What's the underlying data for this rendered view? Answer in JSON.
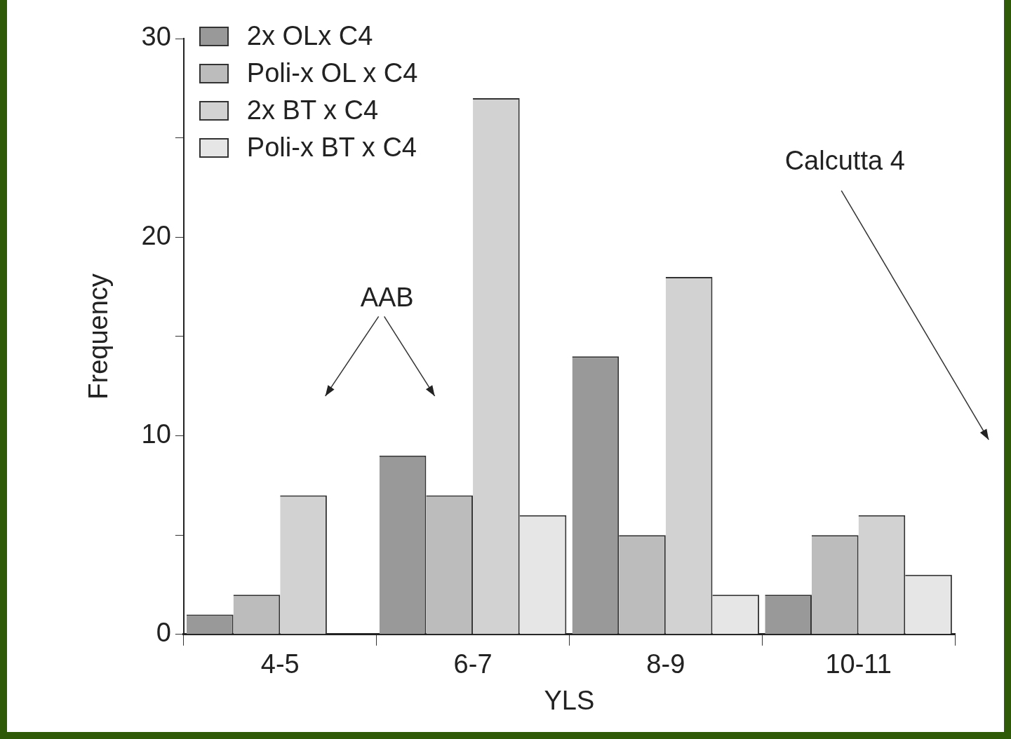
{
  "chart_data": {
    "type": "bar",
    "xlabel": "YLS",
    "ylabel": "Frequency",
    "categories": [
      "4-5",
      "6-7",
      "8-9",
      "10-11"
    ],
    "series": [
      {
        "name": "2x OLx C4",
        "color": "#999999",
        "values": [
          1,
          9,
          14,
          2
        ]
      },
      {
        "name": "Poli-x OL x C4",
        "color": "#bcbcbc",
        "values": [
          2,
          7,
          5,
          5
        ]
      },
      {
        "name": "2x BT x C4",
        "color": "#d2d2d2",
        "values": [
          7,
          27,
          18,
          6
        ]
      },
      {
        "name": "Poli-x BT x C4",
        "color": "#e6e6e6",
        "values": [
          0,
          6,
          2,
          3
        ]
      }
    ],
    "ylim": [
      0,
      30
    ],
    "yticks": [
      0,
      {
        "value": 5,
        "label": null
      },
      10,
      {
        "value": 15,
        "label": null
      },
      20,
      {
        "value": 25,
        "label": null
      },
      30
    ],
    "legend": "top left",
    "annotations": [
      "AAB",
      "Calcutta 4"
    ]
  }
}
